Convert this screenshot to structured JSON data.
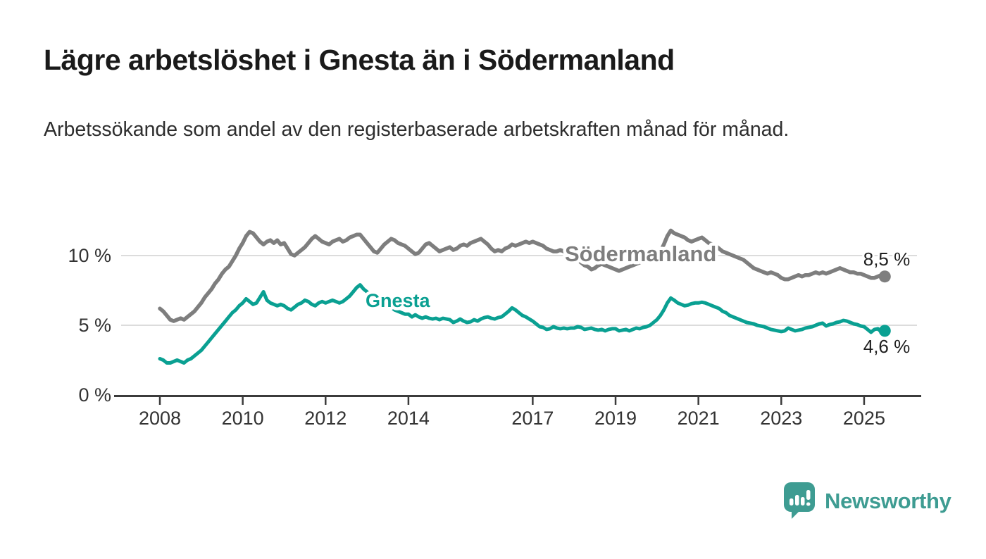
{
  "header": {},
  "footer": {
    "brand": "Newsworthy"
  },
  "chart_data": {
    "type": "line",
    "title": "Lägre arbetslöshet i Gnesta än i Södermanland",
    "subtitle": "Arbetssökande som andel av den registerbaserade arbetskraften månad för månad.",
    "xlabel": "",
    "ylabel": "",
    "frequency": "monthly",
    "x_start": "2008-01",
    "x_end": "2025-07",
    "legend": "inline-labels",
    "grid": "horizontal",
    "ylim": [
      0,
      12.5
    ],
    "yticks": [
      {
        "value": 0,
        "label": "0 %"
      },
      {
        "value": 5,
        "label": "5 %"
      },
      {
        "value": 10,
        "label": "10 %"
      }
    ],
    "xticks": [
      {
        "year": 2008,
        "label": "2008"
      },
      {
        "year": 2010,
        "label": "2010"
      },
      {
        "year": 2012,
        "label": "2012"
      },
      {
        "year": 2014,
        "label": "2014"
      },
      {
        "year": 2017,
        "label": "2017"
      },
      {
        "year": 2019,
        "label": "2019"
      },
      {
        "year": 2021,
        "label": "2021"
      },
      {
        "year": 2023,
        "label": "2023"
      },
      {
        "year": 2025,
        "label": "2025"
      }
    ],
    "series": [
      {
        "name": "Södermanland",
        "color": "#7e7e7e",
        "end_label": "8,5 %",
        "end_value": 8.5,
        "values": [
          6.2,
          6.0,
          5.7,
          5.4,
          5.3,
          5.4,
          5.5,
          5.4,
          5.6,
          5.8,
          6.0,
          6.3,
          6.6,
          7.0,
          7.3,
          7.6,
          8.0,
          8.3,
          8.7,
          9.0,
          9.2,
          9.6,
          10.0,
          10.5,
          10.9,
          11.4,
          11.7,
          11.6,
          11.3,
          11.0,
          10.8,
          11.0,
          11.1,
          10.9,
          11.1,
          10.8,
          10.9,
          10.5,
          10.1,
          10.0,
          10.2,
          10.4,
          10.6,
          10.9,
          11.2,
          11.4,
          11.2,
          11.0,
          10.9,
          10.8,
          11.0,
          11.1,
          11.2,
          11.0,
          11.1,
          11.3,
          11.4,
          11.5,
          11.5,
          11.2,
          10.9,
          10.6,
          10.3,
          10.2,
          10.5,
          10.8,
          11.0,
          11.2,
          11.1,
          10.9,
          10.8,
          10.7,
          10.5,
          10.3,
          10.1,
          10.2,
          10.5,
          10.8,
          10.9,
          10.7,
          10.5,
          10.3,
          10.4,
          10.5,
          10.6,
          10.4,
          10.5,
          10.7,
          10.8,
          10.7,
          10.9,
          11.0,
          11.1,
          11.2,
          11.0,
          10.8,
          10.5,
          10.3,
          10.4,
          10.3,
          10.5,
          10.6,
          10.8,
          10.7,
          10.8,
          10.9,
          11.0,
          10.9,
          11.0,
          10.9,
          10.8,
          10.7,
          10.5,
          10.4,
          10.3,
          10.3,
          10.4,
          10.3,
          10.2,
          10.1,
          9.9,
          9.7,
          9.5,
          9.3,
          9.2,
          9.0,
          9.1,
          9.3,
          9.4,
          9.3,
          9.2,
          9.1,
          9.0,
          8.9,
          9.0,
          9.1,
          9.2,
          9.3,
          9.4,
          9.5,
          9.6,
          9.7,
          9.8,
          9.9,
          10.1,
          10.3,
          10.8,
          11.4,
          11.8,
          11.6,
          11.5,
          11.4,
          11.3,
          11.1,
          11.0,
          11.1,
          11.2,
          11.3,
          11.1,
          10.9,
          10.8,
          10.7,
          10.5,
          10.3,
          10.2,
          10.1,
          10.0,
          9.9,
          9.8,
          9.7,
          9.5,
          9.3,
          9.1,
          9.0,
          8.9,
          8.8,
          8.7,
          8.8,
          8.7,
          8.6,
          8.4,
          8.3,
          8.3,
          8.4,
          8.5,
          8.6,
          8.5,
          8.6,
          8.6,
          8.7,
          8.8,
          8.7,
          8.8,
          8.7,
          8.8,
          8.9,
          9.0,
          9.1,
          9.0,
          8.9,
          8.8,
          8.8,
          8.7,
          8.7,
          8.6,
          8.5,
          8.4,
          8.4,
          8.5,
          8.6,
          8.5
        ]
      },
      {
        "name": "Gnesta",
        "color": "#0aa092",
        "end_label": "4,6 %",
        "end_value": 4.6,
        "values": [
          2.6,
          2.5,
          2.3,
          2.3,
          2.4,
          2.5,
          2.4,
          2.3,
          2.5,
          2.6,
          2.8,
          3.0,
          3.2,
          3.5,
          3.8,
          4.1,
          4.4,
          4.7,
          5.0,
          5.3,
          5.6,
          5.9,
          6.1,
          6.4,
          6.6,
          6.9,
          6.7,
          6.5,
          6.6,
          7.0,
          7.4,
          6.8,
          6.6,
          6.5,
          6.4,
          6.5,
          6.4,
          6.2,
          6.1,
          6.3,
          6.5,
          6.6,
          6.8,
          6.7,
          6.5,
          6.4,
          6.6,
          6.7,
          6.6,
          6.7,
          6.8,
          6.7,
          6.6,
          6.7,
          6.9,
          7.1,
          7.4,
          7.7,
          7.9,
          7.6,
          7.4,
          7.2,
          7.0,
          6.9,
          6.8,
          6.6,
          6.5,
          6.3,
          6.1,
          6.0,
          5.9,
          5.8,
          5.8,
          5.6,
          5.75,
          5.6,
          5.5,
          5.6,
          5.5,
          5.45,
          5.5,
          5.4,
          5.5,
          5.45,
          5.4,
          5.2,
          5.3,
          5.45,
          5.3,
          5.2,
          5.25,
          5.4,
          5.3,
          5.45,
          5.55,
          5.6,
          5.5,
          5.45,
          5.55,
          5.6,
          5.8,
          6.0,
          6.25,
          6.1,
          5.9,
          5.7,
          5.6,
          5.45,
          5.3,
          5.1,
          4.9,
          4.85,
          4.7,
          4.75,
          4.9,
          4.8,
          4.75,
          4.8,
          4.75,
          4.8,
          4.8,
          4.9,
          4.85,
          4.7,
          4.75,
          4.8,
          4.7,
          4.65,
          4.7,
          4.6,
          4.7,
          4.75,
          4.75,
          4.6,
          4.65,
          4.7,
          4.6,
          4.7,
          4.8,
          4.75,
          4.85,
          4.9,
          5.0,
          5.2,
          5.4,
          5.7,
          6.1,
          6.6,
          6.95,
          6.8,
          6.6,
          6.5,
          6.4,
          6.45,
          6.55,
          6.6,
          6.6,
          6.65,
          6.6,
          6.5,
          6.4,
          6.3,
          6.2,
          6.0,
          5.9,
          5.7,
          5.6,
          5.5,
          5.4,
          5.3,
          5.2,
          5.15,
          5.1,
          5.0,
          4.95,
          4.9,
          4.8,
          4.7,
          4.65,
          4.6,
          4.55,
          4.6,
          4.8,
          4.7,
          4.6,
          4.65,
          4.7,
          4.8,
          4.85,
          4.9,
          5.0,
          5.1,
          5.15,
          4.95,
          5.05,
          5.1,
          5.2,
          5.25,
          5.35,
          5.3,
          5.2,
          5.1,
          5.05,
          4.95,
          4.9,
          4.7,
          4.5,
          4.7,
          4.75,
          4.5,
          4.6
        ]
      }
    ],
    "colors": {
      "grid": "#dcdcdc",
      "axis": "#3b3b3b",
      "tick_text": "#333333",
      "end_label_text": "#1f1f1f",
      "brand_teal": "#3e9c92"
    }
  }
}
